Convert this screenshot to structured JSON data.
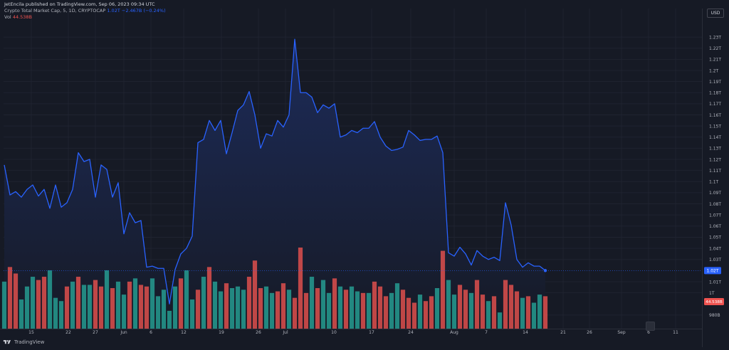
{
  "header": {
    "publisher": "JetEncila published on TradingView.com, Sep 06, 2023 09:34 UTC",
    "symbol": "Crypto Total Market Cap, 5, 1D, CRYPTOCAP",
    "value_text": "1.02T  −2.467B (−0.24%)",
    "volume_label": "Vol",
    "volume_value": "44.538B"
  },
  "currency": "USD",
  "footer": {
    "brand": "TradingView"
  },
  "colors": {
    "background": "#161a25",
    "line": "#2962ff",
    "area_top": "#1d2c5c",
    "area_bottom": "#161a25",
    "vol_up": "#26a69a",
    "vol_down": "#ef5350",
    "price_badge": "#2962ff",
    "vol_badge": "#ef5350"
  },
  "chart_data": {
    "type": "area",
    "title": "Crypto Total Market Cap, 5, 1D, CRYPTOCAP",
    "series": [
      {
        "name": "Crypto Total Market Cap",
        "values": [
          1.115,
          1.088,
          1.091,
          1.086,
          1.093,
          1.097,
          1.087,
          1.093,
          1.076,
          1.097,
          1.077,
          1.081,
          1.093,
          1.126,
          1.118,
          1.12,
          1.086,
          1.115,
          1.111,
          1.086,
          1.099,
          1.053,
          1.072,
          1.063,
          1.065,
          1.023,
          1.024,
          1.022,
          1.022,
          0.99,
          1.021,
          1.035,
          1.04,
          1.051,
          1.135,
          1.138,
          1.155,
          1.146,
          1.155,
          1.125,
          1.144,
          1.164,
          1.169,
          1.181,
          1.16,
          1.13,
          1.143,
          1.141,
          1.155,
          1.149,
          1.16,
          1.228,
          1.18,
          1.18,
          1.176,
          1.162,
          1.169,
          1.166,
          1.17,
          1.14,
          1.142,
          1.146,
          1.144,
          1.148,
          1.148,
          1.154,
          1.14,
          1.132,
          1.128,
          1.129,
          1.131,
          1.146,
          1.142,
          1.137,
          1.138,
          1.138,
          1.141,
          1.126,
          1.036,
          1.033,
          1.041,
          1.035,
          1.025,
          1.038,
          1.033,
          1.03,
          1.032,
          1.029,
          1.081,
          1.061,
          1.03,
          1.023,
          1.027,
          1.024,
          1.024,
          1.02
        ]
      },
      {
        "name": "Vol",
        "type": "bar",
        "values": [
          58,
          76,
          68,
          36,
          52,
          64,
          60,
          64,
          72,
          38,
          34,
          52,
          58,
          64,
          54,
          54,
          60,
          52,
          72,
          50,
          58,
          42,
          58,
          62,
          54,
          52,
          62,
          40,
          48,
          22,
          52,
          62,
          72,
          36,
          48,
          64,
          76,
          58,
          46,
          56,
          50,
          52,
          48,
          64,
          84,
          50,
          52,
          44,
          46,
          56,
          48,
          38,
          100,
          44,
          64,
          50,
          60,
          44,
          62,
          52,
          48,
          52,
          46,
          44,
          44,
          58,
          52,
          40,
          44,
          56,
          48,
          38,
          32,
          42,
          34,
          40,
          50,
          96,
          60,
          42,
          54,
          48,
          44,
          60,
          42,
          34,
          40,
          20,
          60,
          54,
          46,
          38,
          40,
          32,
          42,
          40
        ],
        "up": [
          1,
          0,
          0,
          1,
          1,
          1,
          0,
          0,
          1,
          1,
          1,
          0,
          1,
          0,
          1,
          1,
          0,
          0,
          1,
          0,
          1,
          1,
          0,
          1,
          0,
          0,
          1,
          1,
          1,
          1,
          1,
          0,
          1,
          1,
          0,
          1,
          0,
          1,
          1,
          0,
          1,
          1,
          1,
          0,
          0,
          0,
          1,
          1,
          0,
          0,
          1,
          0,
          0,
          0,
          1,
          0,
          1,
          1,
          0,
          1,
          0,
          1,
          1,
          0,
          1,
          0,
          0,
          0,
          1,
          1,
          0,
          0,
          0,
          1,
          0,
          0,
          1,
          0,
          1,
          1,
          0,
          0,
          1,
          0,
          0,
          1,
          0,
          1,
          0,
          0,
          0,
          1,
          0,
          1,
          1,
          0
        ]
      }
    ],
    "x_tick_labels": [
      "15",
      "22",
      "27",
      "Jun",
      "6",
      "12",
      "19",
      "26",
      "Jul",
      "10",
      "17",
      "24",
      "Aug",
      "7",
      "14",
      "21",
      "26",
      "Sep",
      "6",
      "11"
    ],
    "y_tick_labels": [
      "1.23T",
      "1.22T",
      "1.21T",
      "1.2T",
      "1.19T",
      "1.18T",
      "1.17T",
      "1.16T",
      "1.15T",
      "1.14T",
      "1.13T",
      "1.12T",
      "1.11T",
      "1.1T",
      "1.09T",
      "1.08T",
      "1.07T",
      "1.06T",
      "1.05T",
      "1.04T",
      "1.03T",
      "1.01T",
      "1T",
      "980B"
    ],
    "y_range": [
      0.978,
      1.239
    ],
    "last_price_label": "1.02T",
    "volume_badge_label": "44.538B",
    "grid": true,
    "axis_position": "right"
  }
}
